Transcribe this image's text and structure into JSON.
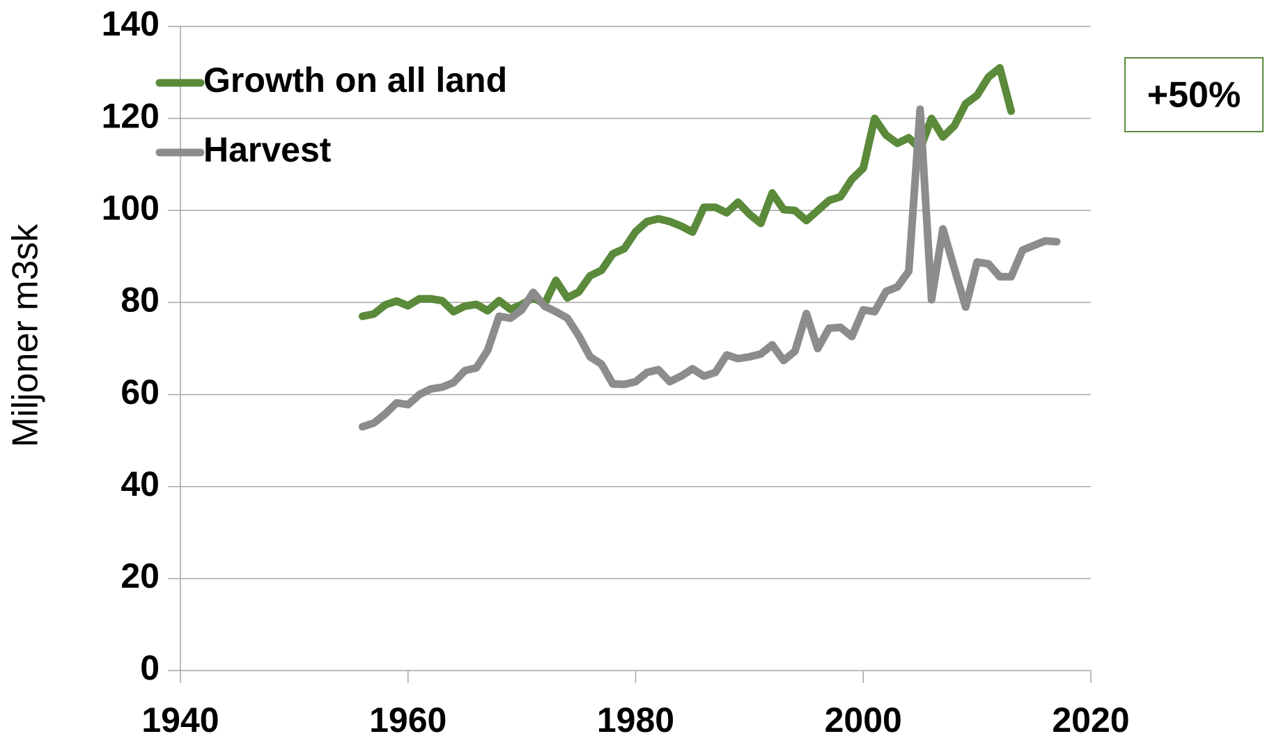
{
  "chart_data": {
    "type": "line",
    "y_label": "Miljoner m3sk",
    "annotation": "+50%",
    "annotation_color": "#5a8a3a",
    "grid": true,
    "legend": "upper left",
    "xlim": [
      1940,
      2020
    ],
    "xticks": [
      1940,
      1960,
      1980,
      2000,
      2020
    ],
    "ylim": [
      0,
      140
    ],
    "yticks": [
      0,
      20,
      40,
      60,
      80,
      100,
      120,
      140
    ],
    "series": [
      {
        "name": "Growth on all land",
        "color": "#5a8a3a",
        "x": [
          1956,
          1957,
          1958,
          1959,
          1960,
          1961,
          1962,
          1963,
          1964,
          1965,
          1966,
          1967,
          1968,
          1969,
          1970,
          1971,
          1972,
          1973,
          1974,
          1975,
          1976,
          1977,
          1978,
          1979,
          1980,
          1981,
          1982,
          1983,
          1984,
          1985,
          1986,
          1987,
          1988,
          1989,
          1990,
          1991,
          1992,
          1993,
          1994,
          1995,
          1996,
          1997,
          1998,
          1999,
          2000,
          2001,
          2002,
          2003,
          2004,
          2005,
          2006,
          2007,
          2008,
          2009,
          2010,
          2011,
          2012,
          2013
        ],
        "values": [
          77,
          77.5,
          79.5,
          80.3,
          79.3,
          80.8,
          80.8,
          80.4,
          78,
          79.2,
          79.6,
          78.2,
          80.4,
          78.5,
          79.6,
          81,
          79.7,
          84.8,
          81,
          82.3,
          85.8,
          87,
          90.6,
          91.7,
          95.4,
          97.6,
          98.2,
          97.6,
          96.6,
          95.3,
          100.7,
          100.7,
          99.5,
          101.8,
          99.2,
          97.2,
          103.8,
          100.2,
          100,
          97.8,
          100,
          102.2,
          103,
          106.8,
          109.2,
          120,
          116.4,
          114.6,
          115.8,
          113.4,
          120,
          116,
          118.4,
          123.2,
          125,
          129,
          131,
          121.6
        ]
      },
      {
        "name": "Harvest",
        "color": "#8c8c8c",
        "x": [
          1956,
          1957,
          1958,
          1959,
          1960,
          1961,
          1962,
          1963,
          1964,
          1965,
          1966,
          1967,
          1968,
          1969,
          1970,
          1971,
          1972,
          1973,
          1974,
          1975,
          1976,
          1977,
          1978,
          1979,
          1980,
          1981,
          1982,
          1983,
          1984,
          1985,
          1986,
          1987,
          1988,
          1989,
          1990,
          1991,
          1992,
          1993,
          1994,
          1995,
          1996,
          1997,
          1998,
          1999,
          2000,
          2001,
          2002,
          2003,
          2004,
          2005,
          2006,
          2007,
          2008,
          2009,
          2010,
          2011,
          2012,
          2013,
          2014,
          2015,
          2016,
          2017
        ],
        "values": [
          53,
          53.8,
          55.8,
          58.2,
          57.8,
          60,
          61.2,
          61.6,
          62.6,
          65.2,
          65.8,
          69.6,
          77,
          76.6,
          78.4,
          82.2,
          79.2,
          78,
          76.6,
          72.8,
          68.2,
          66.6,
          62.3,
          62.2,
          62.8,
          64.8,
          65.4,
          62.8,
          64,
          65.6,
          64,
          64.8,
          68.6,
          67.8,
          68.2,
          68.8,
          70.8,
          67.4,
          69.4,
          77.6,
          70,
          74.4,
          74.6,
          72.6,
          78.4,
          78,
          82.4,
          83.4,
          86.8,
          122,
          80.6,
          96,
          87.4,
          79,
          88.8,
          88.4,
          85.6,
          85.6,
          91.4,
          92.4,
          93.4,
          93.2
        ]
      }
    ]
  }
}
